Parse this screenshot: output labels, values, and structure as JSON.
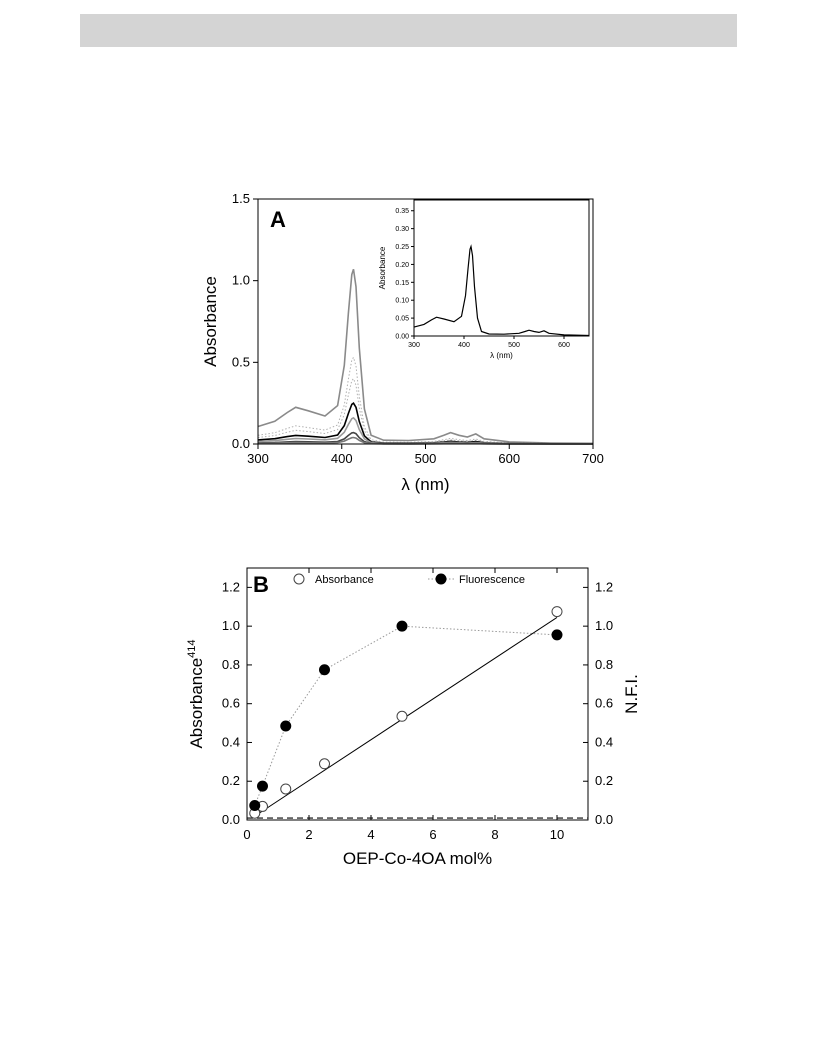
{
  "page": {
    "header_bar_color": "#d4d4d4"
  },
  "chart_data": [
    {
      "panel": "A",
      "type": "line",
      "panel_label": "A",
      "xlabel": "λ (nm)",
      "ylabel": "Absorbance",
      "xlim": [
        300,
        700
      ],
      "ylim": [
        0,
        1.5
      ],
      "xticks": [
        "300",
        "400",
        "500",
        "600",
        "700"
      ],
      "yticks": [
        "0.0",
        "0.5",
        "1.0",
        "1.5"
      ],
      "series": [
        {
          "style": "solid",
          "color": "#8a8a8a",
          "scale": 1.07
        },
        {
          "style": "dotted",
          "color": "#b0b0b0",
          "scale": 0.53
        },
        {
          "style": "dotted",
          "color": "#b0b0b0",
          "scale": 0.4
        },
        {
          "style": "solid",
          "color": "#000000",
          "scale": 0.25
        },
        {
          "style": "solid",
          "color": "#9a9a9a",
          "scale": 0.16
        },
        {
          "style": "solid",
          "color": "#444444",
          "scale": 0.07
        },
        {
          "style": "solid",
          "color": "#777777",
          "scale": 0.04
        }
      ],
      "spectrum_points": {
        "x": [
          300,
          320,
          335,
          345,
          360,
          380,
          395,
          403,
          408,
          412,
          414,
          417,
          421,
          427,
          435,
          450,
          480,
          510,
          522,
          530,
          540,
          550,
          560,
          570,
          600,
          650,
          700
        ],
        "y": [
          0.1,
          0.13,
          0.18,
          0.21,
          0.19,
          0.16,
          0.22,
          0.45,
          0.75,
          0.97,
          1.0,
          0.9,
          0.55,
          0.2,
          0.05,
          0.022,
          0.02,
          0.03,
          0.05,
          0.065,
          0.05,
          0.04,
          0.058,
          0.03,
          0.012,
          0.006,
          0.004
        ]
      },
      "inset": {
        "type": "line",
        "xlabel": "λ (nm)",
        "ylabel": "Absorbance",
        "xlim": [
          300,
          650
        ],
        "ylim": [
          0,
          0.38
        ],
        "xticks": [
          "300",
          "400",
          "500",
          "600"
        ],
        "yticks": [
          "0.00",
          "0.05",
          "0.10",
          "0.15",
          "0.20",
          "0.25",
          "0.30",
          "0.35"
        ],
        "peak": 0.25
      }
    },
    {
      "panel": "B",
      "type": "scatter",
      "panel_label": "B",
      "xlabel": "OEP-Co-4OA mol%",
      "ylabel": "Absorbance",
      "ylabel_superscript": "414",
      "y2label": "N.F.I.",
      "xlim": [
        0,
        11
      ],
      "ylim": [
        0,
        1.3
      ],
      "xticks": [
        "0",
        "2",
        "4",
        "6",
        "8",
        "10"
      ],
      "yticks": [
        "0.0",
        "0.2",
        "0.4",
        "0.6",
        "0.8",
        "1.0",
        "1.2"
      ],
      "baseline": 0.01,
      "series": [
        {
          "name": "Absorbance",
          "marker": "open-circle",
          "line": "solid",
          "x": [
            0.25,
            0.5,
            1.25,
            2.5,
            5,
            10
          ],
          "y": [
            0.035,
            0.07,
            0.16,
            0.29,
            0.535,
            1.075
          ],
          "fit_line": {
            "x": [
              0.25,
              10
            ],
            "y": [
              0.02,
              1.045
            ]
          }
        },
        {
          "name": "Fluorescence",
          "marker": "filled-circle",
          "line": "dotted",
          "x": [
            0.25,
            0.5,
            1.25,
            2.5,
            5,
            10
          ],
          "y": [
            0.075,
            0.175,
            0.485,
            0.775,
            1.0,
            0.955
          ]
        }
      ]
    }
  ]
}
